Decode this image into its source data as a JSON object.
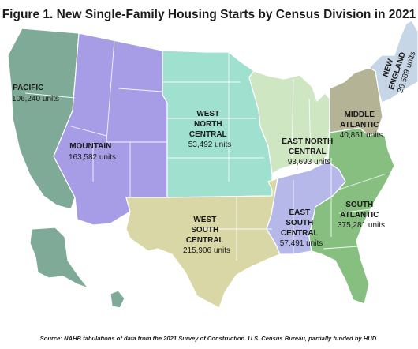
{
  "title": "Figure 1. New Single-Family Housing Starts by Census Division in 2021",
  "source": "Source: NAHB tabulations of data from the 2021 Survey of Construction.  U.S. Census  Bureau, partially funded by HUD.",
  "regions": [
    {
      "id": "pacific",
      "name_lines": [
        "PACIFIC"
      ],
      "value": "106,240 units",
      "color": "#7eaa97"
    },
    {
      "id": "mountain",
      "name_lines": [
        "MOUNTAIN"
      ],
      "value": "163,582 units",
      "color": "#a79ce6"
    },
    {
      "id": "west-north-central",
      "name_lines": [
        "WEST",
        "NORTH",
        "CENTRAL"
      ],
      "value": "53,492 units",
      "color": "#9fe0cf"
    },
    {
      "id": "east-north-central",
      "name_lines": [
        "EAST NORTH",
        "CENTRAL"
      ],
      "value": "93,693 units",
      "color": "#cfe6c3"
    },
    {
      "id": "middle-atlantic",
      "name_lines": [
        "MIDDLE",
        "ATLANTIC"
      ],
      "value": "40,861 units",
      "color": "#b4b396"
    },
    {
      "id": "new-england",
      "name_lines": [
        "NEW",
        "ENGLAND"
      ],
      "value": "26,589 units",
      "color": "#c6d6e6"
    },
    {
      "id": "west-south-central",
      "name_lines": [
        "WEST",
        "SOUTH",
        "CENTRAL"
      ],
      "value": "215,906 units",
      "color": "#d8d7a5"
    },
    {
      "id": "east-south-central",
      "name_lines": [
        "EAST",
        "SOUTH",
        "CENTRAL"
      ],
      "value": "57,491 units",
      "color": "#b5b8e8"
    },
    {
      "id": "south-atlantic",
      "name_lines": [
        "SOUTH",
        "ATLANTIC"
      ],
      "value": "375,281 units",
      "color": "#87bf80"
    }
  ]
}
